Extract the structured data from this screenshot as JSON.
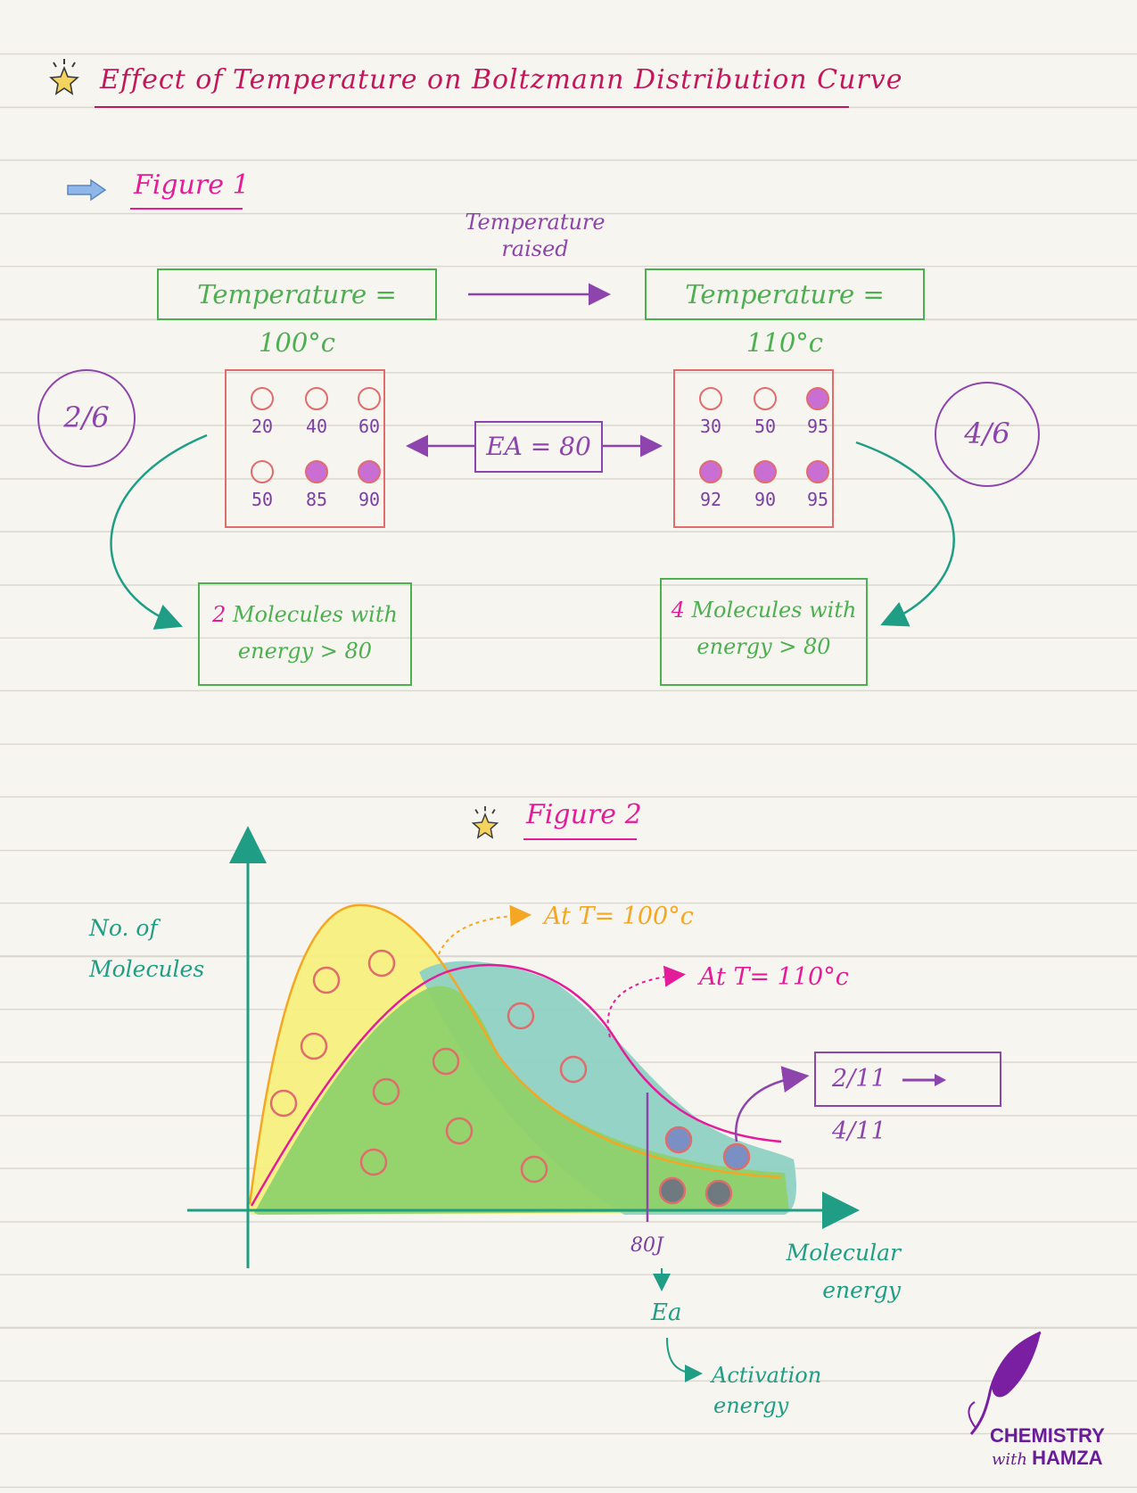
{
  "title": "Effect of Temperature on Boltzmann Distribution Curve",
  "figure1": {
    "label": "Figure 1",
    "temp_change_label_line1": "Temperature",
    "temp_change_label_line2": "raised",
    "temp_left": "Temperature = 100°c",
    "temp_right": "Temperature = 110°c",
    "ea_label": "EA = 80",
    "left_fraction": "2/6",
    "right_fraction": "4/6",
    "left_molecules": [
      {
        "energy": "20",
        "above_ea": false
      },
      {
        "energy": "40",
        "above_ea": false
      },
      {
        "energy": "60",
        "above_ea": false
      },
      {
        "energy": "50",
        "above_ea": false
      },
      {
        "energy": "85",
        "above_ea": true
      },
      {
        "energy": "90",
        "above_ea": true
      }
    ],
    "right_molecules": [
      {
        "energy": "30",
        "above_ea": false
      },
      {
        "energy": "50",
        "above_ea": false
      },
      {
        "energy": "95",
        "above_ea": true
      },
      {
        "energy": "92",
        "above_ea": true
      },
      {
        "energy": "90",
        "above_ea": true
      },
      {
        "energy": "95",
        "above_ea": true
      }
    ],
    "left_result_count": "2",
    "left_result_text_line1": "Molecules with",
    "left_result_text_line2": "energy > 80",
    "right_result_count": "4",
    "right_result_text_line1": "Molecules with",
    "right_result_text_line2": "energy > 80"
  },
  "figure2": {
    "label": "Figure 2",
    "y_axis_label_line1": "No. of",
    "y_axis_label_line2": "Molecules",
    "x_axis_label_line1": "Molecular",
    "x_axis_label_line2": "energy",
    "curve_100_label": "At T= 100°c",
    "curve_110_label": "At T= 110°c",
    "ea_tick_label": "80J",
    "ea_symbol": "Ea",
    "activation_label_line1": "Activation",
    "activation_label_line2": "energy",
    "fraction_change_from": "2/11",
    "fraction_change_to": "4/11"
  },
  "chart_data": {
    "type": "area",
    "title": "",
    "xlabel": "Molecular energy",
    "ylabel": "No. of Molecules",
    "x_marker": {
      "value": 80,
      "label": "80J"
    },
    "series": [
      {
        "name": "At T= 100°c",
        "color": "#f5a623"
      },
      {
        "name": "At T= 110°c",
        "color": "#e31c9a"
      }
    ]
  },
  "colors": {
    "title": "#c2185b",
    "figure_label": "#e31c9a",
    "green": "#4caf50",
    "red": "#e06c6c",
    "purple": "#8e44ad",
    "teal": "#1f9e85",
    "orange": "#f5a623"
  },
  "logo": {
    "line1": "CHEMISTRY",
    "line2_small": "with",
    "line2": "HAMZA"
  }
}
